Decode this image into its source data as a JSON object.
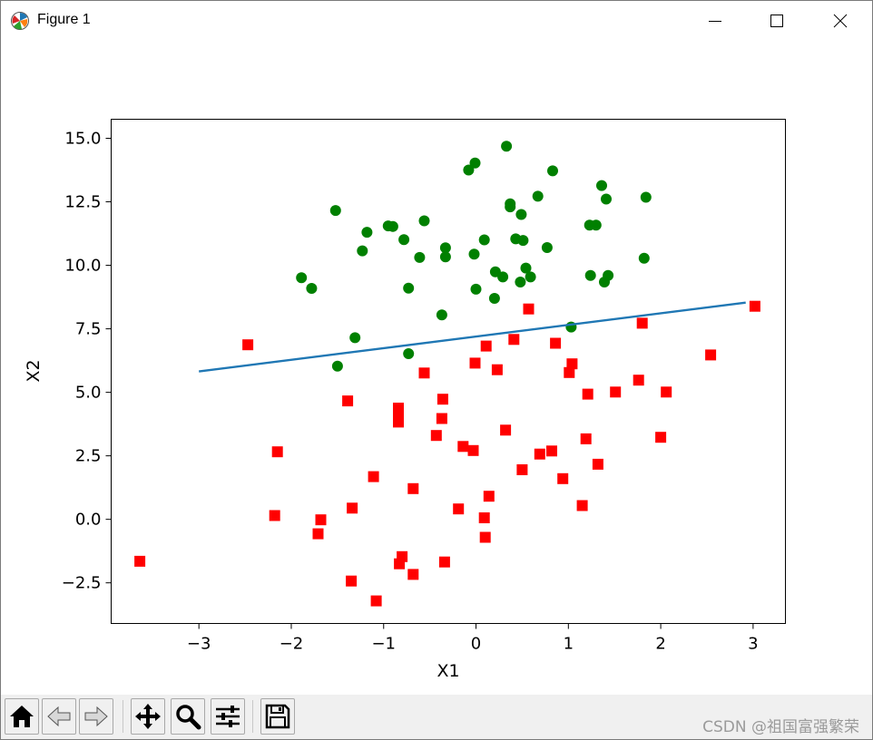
{
  "window": {
    "title": "Figure 1",
    "icons": [
      "matplotlib-logo-icon",
      "minimize-icon",
      "maximize-icon",
      "close-icon"
    ]
  },
  "toolbar": {
    "buttons": [
      "home-icon",
      "back-icon",
      "forward-icon",
      "pan-icon",
      "zoom-icon",
      "configure-subplots-icon",
      "save-icon"
    ],
    "watermark": "CSDN @祖国富强繁荣"
  },
  "colors": {
    "class0": "#ff0000",
    "class1": "#008000",
    "line": "#1f77b4"
  },
  "chart_data": {
    "type": "scatter",
    "title": "",
    "xlabel": "X1",
    "ylabel": "X2",
    "xlim": [
      -3.95,
      3.35
    ],
    "ylim": [
      -4.1,
      15.75
    ],
    "xticks": [
      -3,
      -2,
      -1,
      0,
      1,
      2,
      3
    ],
    "yticks": [
      -2.5,
      0.0,
      2.5,
      5.0,
      7.5,
      10.0,
      12.5,
      15.0
    ],
    "xtick_labels": [
      "−3",
      "−2",
      "−1",
      "0",
      "1",
      "2",
      "3"
    ],
    "ytick_labels": [
      "−2.5",
      "0.0",
      "2.5",
      "5.0",
      "7.5",
      "10.0",
      "12.5",
      "15.0"
    ],
    "grid": false,
    "series": [
      {
        "marker": "square",
        "color": "#ff0000",
        "points": [
          [
            -3.64,
            -1.65
          ],
          [
            -2.47,
            6.87
          ],
          [
            -2.15,
            2.66
          ],
          [
            -2.18,
            0.15
          ],
          [
            -1.68,
            -0.02
          ],
          [
            -1.71,
            -0.57
          ],
          [
            -1.39,
            4.66
          ],
          [
            -1.34,
            0.44
          ],
          [
            -1.35,
            -2.43
          ],
          [
            -1.11,
            1.68
          ],
          [
            -1.08,
            -3.21
          ],
          [
            -0.84,
            4.38
          ],
          [
            -0.84,
            4.07
          ],
          [
            -0.84,
            3.83
          ],
          [
            -0.83,
            -1.75
          ],
          [
            -0.8,
            -1.47
          ],
          [
            -0.68,
            1.21
          ],
          [
            -0.68,
            -2.17
          ],
          [
            -0.56,
            5.76
          ],
          [
            -0.43,
            3.3
          ],
          [
            -0.37,
            3.97
          ],
          [
            -0.36,
            4.73
          ],
          [
            -0.34,
            -1.68
          ],
          [
            -0.19,
            0.41
          ],
          [
            -0.14,
            2.87
          ],
          [
            -0.03,
            2.71
          ],
          [
            -0.01,
            6.15
          ],
          [
            0.09,
            0.06
          ],
          [
            0.1,
            -0.71
          ],
          [
            0.11,
            6.82
          ],
          [
            0.14,
            0.91
          ],
          [
            0.23,
            5.89
          ],
          [
            0.32,
            3.51
          ],
          [
            0.41,
            7.08
          ],
          [
            0.5,
            1.95
          ],
          [
            0.57,
            8.28
          ],
          [
            0.69,
            2.57
          ],
          [
            0.82,
            2.69
          ],
          [
            0.86,
            6.93
          ],
          [
            0.94,
            1.6
          ],
          [
            1.01,
            5.78
          ],
          [
            1.04,
            6.12
          ],
          [
            1.15,
            0.54
          ],
          [
            1.19,
            3.17
          ],
          [
            1.21,
            4.93
          ],
          [
            1.32,
            2.17
          ],
          [
            1.51,
            5.01
          ],
          [
            1.76,
            5.48
          ],
          [
            1.8,
            7.72
          ],
          [
            2.0,
            3.23
          ],
          [
            2.06,
            5.01
          ],
          [
            2.54,
            6.47
          ],
          [
            3.02,
            8.39
          ]
        ]
      },
      {
        "marker": "circle",
        "color": "#008000",
        "points": [
          [
            -1.89,
            9.51
          ],
          [
            -1.78,
            9.09
          ],
          [
            -1.52,
            12.16
          ],
          [
            -1.5,
            6.03
          ],
          [
            -1.31,
            7.15
          ],
          [
            -1.23,
            10.57
          ],
          [
            -1.18,
            11.3
          ],
          [
            -0.95,
            11.55
          ],
          [
            -0.9,
            11.53
          ],
          [
            -0.78,
            11.01
          ],
          [
            -0.73,
            9.1
          ],
          [
            -0.73,
            6.52
          ],
          [
            -0.61,
            10.31
          ],
          [
            -0.56,
            11.75
          ],
          [
            -0.37,
            8.05
          ],
          [
            -0.33,
            10.33
          ],
          [
            -0.33,
            10.69
          ],
          [
            -0.08,
            13.75
          ],
          [
            -0.01,
            14.03
          ],
          [
            -0.02,
            10.44
          ],
          [
            0.0,
            9.06
          ],
          [
            0.09,
            11.0
          ],
          [
            0.2,
            8.7
          ],
          [
            0.21,
            9.74
          ],
          [
            0.29,
            9.54
          ],
          [
            0.33,
            14.69
          ],
          [
            0.37,
            12.3
          ],
          [
            0.37,
            12.42
          ],
          [
            0.43,
            11.04
          ],
          [
            0.49,
            12.0
          ],
          [
            0.48,
            9.34
          ],
          [
            0.51,
            10.98
          ],
          [
            0.54,
            9.89
          ],
          [
            0.59,
            9.54
          ],
          [
            0.67,
            12.72
          ],
          [
            0.77,
            10.7
          ],
          [
            0.83,
            13.72
          ],
          [
            1.03,
            7.57
          ],
          [
            1.23,
            11.58
          ],
          [
            1.24,
            9.6
          ],
          [
            1.3,
            11.58
          ],
          [
            1.36,
            13.14
          ],
          [
            1.39,
            9.34
          ],
          [
            1.41,
            12.61
          ],
          [
            1.43,
            9.6
          ],
          [
            1.82,
            10.28
          ],
          [
            1.84,
            12.68
          ]
        ]
      },
      {
        "marker": "line",
        "color": "#1f77b4",
        "points": [
          [
            -3.0,
            5.82
          ],
          [
            2.92,
            8.53
          ]
        ]
      }
    ]
  }
}
